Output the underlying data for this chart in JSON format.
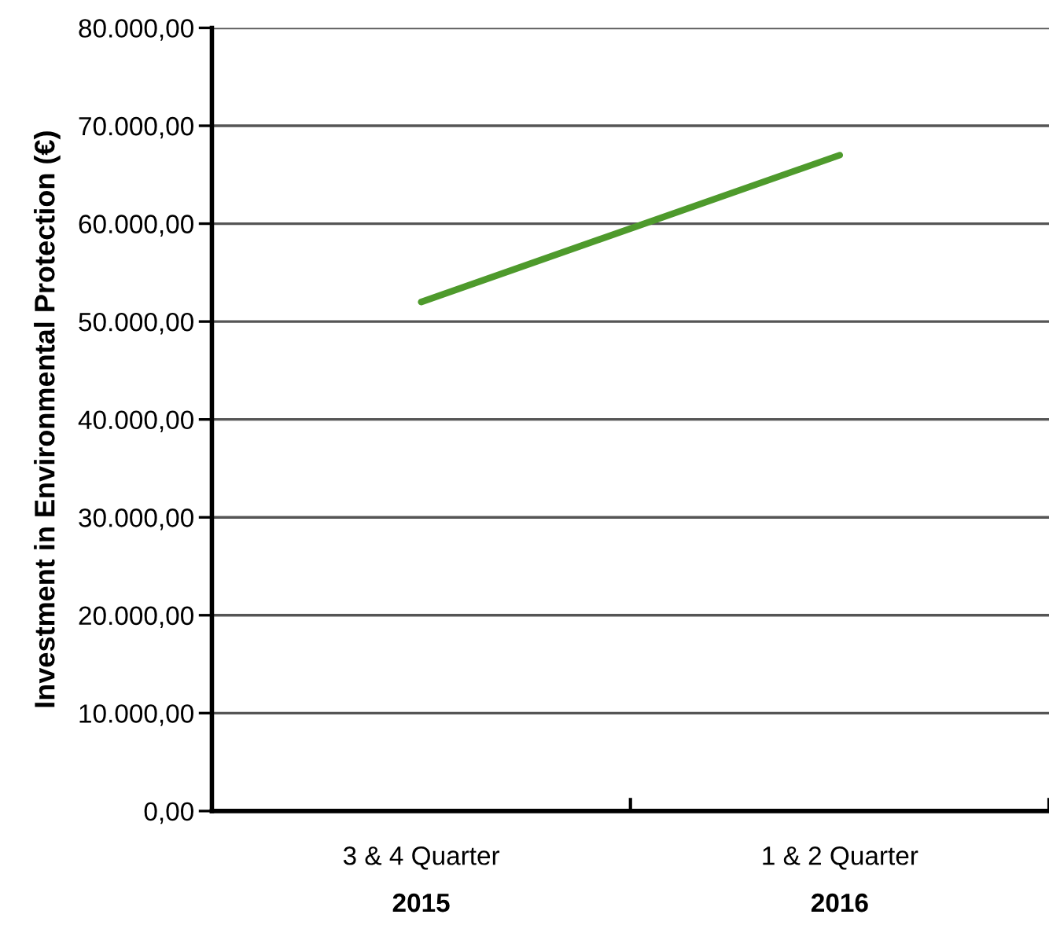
{
  "chart_data": {
    "type": "line",
    "ylabel": "Investment in Environmental Protection (€)",
    "categories": [
      "3 & 4 Quarter\n2015",
      "1 & 2 Quarter\n2016"
    ],
    "values": [
      52000,
      67000
    ],
    "color": "#4e9a2c",
    "ylim": [
      0,
      80000
    ],
    "yticks": [
      {
        "value": 0,
        "label": "0,00"
      },
      {
        "value": 10000,
        "label": "10.000,00"
      },
      {
        "value": 20000,
        "label": "20.000,00"
      },
      {
        "value": 30000,
        "label": "30.000,00"
      },
      {
        "value": 40000,
        "label": "40.000,00"
      },
      {
        "value": 50000,
        "label": "50.000,00"
      },
      {
        "value": 60000,
        "label": "60.000,00"
      },
      {
        "value": 70000,
        "label": "70.000,00"
      },
      {
        "value": 80000,
        "label": "80.000,00"
      }
    ],
    "grid": "y",
    "marker": "none",
    "line_style": "solid",
    "legend": false
  }
}
